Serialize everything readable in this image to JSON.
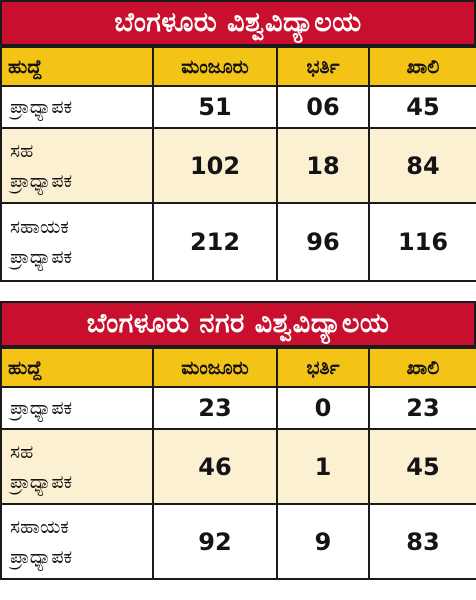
{
  "colors": {
    "banner": "#c8102e",
    "header": "#f3c316",
    "alt_row": "#fbf0d2"
  },
  "headers": {
    "role": "ಹುದ್ದೆ",
    "sanctioned": "ಮಂಜೂರು",
    "filled": "ಭರ್ತಿ",
    "vacant": "ಖಾಲಿ"
  },
  "tables": [
    {
      "title": "ಬೆಂಗಳೂರು ವಿಶ್ವವಿದ್ಯಾಲಯ",
      "rows": [
        {
          "label_lines": [
            "ಪ್ರಾಧ್ಯಾಪಕ"
          ],
          "sanctioned": "51",
          "filled": "06",
          "vacant": "45"
        },
        {
          "label_lines": [
            "ಸಹ",
            "ಪ್ರಾಧ್ಯಾಪಕ"
          ],
          "sanctioned": "102",
          "filled": "18",
          "vacant": "84"
        },
        {
          "label_lines": [
            "ಸಹಾಯಕ",
            "ಪ್ರಾಧ್ಯಾಪಕ"
          ],
          "sanctioned": "212",
          "filled": "96",
          "vacant": "116"
        }
      ]
    },
    {
      "title": "ಬೆಂಗಳೂರು ನಗರ ವಿಶ್ವವಿದ್ಯಾಲಯ",
      "rows": [
        {
          "label_lines": [
            "ಪ್ರಾಧ್ಯಾಪಕ"
          ],
          "sanctioned": "23",
          "filled": "0",
          "vacant": "23"
        },
        {
          "label_lines": [
            "ಸಹ",
            "ಪ್ರಾಧ್ಯಾಪಕ"
          ],
          "sanctioned": "46",
          "filled": "1",
          "vacant": "45"
        },
        {
          "label_lines": [
            "ಸಹಾಯಕ",
            "ಪ್ರಾಧ್ಯಾಪಕ"
          ],
          "sanctioned": "92",
          "filled": "9",
          "vacant": "83"
        }
      ]
    }
  ]
}
